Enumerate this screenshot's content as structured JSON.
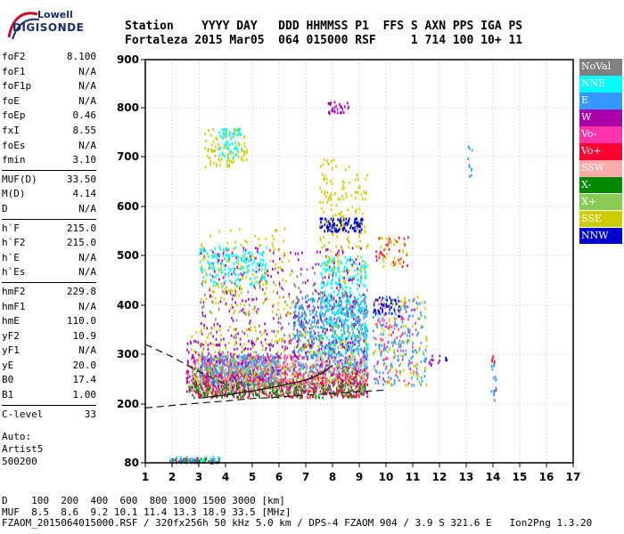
{
  "logo": {
    "top": "Lowell",
    "main": "DIGISONDE"
  },
  "header": {
    "line1": "Station    YYYY DAY   DDD HHMMSS P1  FFS S AXN PPS IGA PS",
    "line2": "Fortaleza 2015 Mar05  064 015000 RSF     1 714 100 10+ 11"
  },
  "params": [
    {
      "name": "foF2",
      "value": "8.100"
    },
    {
      "name": "foF1",
      "value": "N/A"
    },
    {
      "name": "foF1p",
      "value": "N/A"
    },
    {
      "name": "foE",
      "value": "N/A"
    },
    {
      "name": "foEp",
      "value": "0.46"
    },
    {
      "name": "fxI",
      "value": "8.55"
    },
    {
      "name": "foEs",
      "value": "N/A"
    },
    {
      "name": "fmin",
      "value": "3.10"
    },
    {
      "sep": true
    },
    {
      "name": "MUF(D)",
      "value": "33.50"
    },
    {
      "name": "M(D)",
      "value": "4.14"
    },
    {
      "name": "D",
      "value": "N/A"
    },
    {
      "sep": true
    },
    {
      "name": "h`F",
      "value": "215.0"
    },
    {
      "name": "h`F2",
      "value": "215.0"
    },
    {
      "name": "h`E",
      "value": "N/A"
    },
    {
      "name": "h`Es",
      "value": "N/A"
    },
    {
      "sep": true
    },
    {
      "name": "hmF2",
      "value": "229.8"
    },
    {
      "name": "hmF1",
      "value": "N/A"
    },
    {
      "name": "hmE",
      "value": "110.0"
    },
    {
      "name": "yF2",
      "value": "10.9"
    },
    {
      "name": "yF1",
      "value": "N/A"
    },
    {
      "name": "yE",
      "value": "20.0"
    },
    {
      "name": "B0",
      "value": "17.4"
    },
    {
      "name": "B1",
      "value": "1.00"
    },
    {
      "sep": true
    },
    {
      "name": "C-level",
      "value": "33"
    }
  ],
  "auto": {
    "line1": "Auto:",
    "line2": "Artist5",
    "line3": "500200"
  },
  "footer": {
    "line1": "D    100  200  400  600  800 1000 1500 3000 [km]",
    "line2": "MUF  8.5  8.6  9.2 10.1 11.4 13.3 18.9 33.5 [MHz]",
    "line3": "FZAOM_2015064015000.RSF / 320fx256h 50 kHz 5.0 km / DPS-4 FZAOM 904 / 3.9 S 321.6 E   Ion2Png 1.3.20"
  },
  "legend": [
    {
      "label": "NoVal",
      "color": "#808080"
    },
    {
      "label": "NNE",
      "color": "#00ffff"
    },
    {
      "label": "E",
      "color": "#3399ff"
    },
    {
      "label": "W",
      "color": "#aa00aa"
    },
    {
      "label": "Vo-",
      "color": "#ff33aa"
    },
    {
      "label": "Vo+",
      "color": "#ff0033"
    },
    {
      "label": "SSW",
      "color": "#ffaaaa"
    },
    {
      "label": "X-",
      "color": "#008800"
    },
    {
      "label": "X+",
      "color": "#88cc55"
    },
    {
      "label": "SSE",
      "color": "#cccc00"
    },
    {
      "label": "NNW",
      "color": "#0000cc"
    }
  ],
  "chart_data": {
    "type": "scatter",
    "title": "",
    "xlabel": "",
    "ylabel": "",
    "xlim": [
      1,
      17
    ],
    "ylim": [
      80,
      900
    ],
    "x_ticks": [
      1,
      2,
      3,
      4,
      5,
      6,
      7,
      8,
      9,
      10,
      11,
      12,
      13,
      14,
      15,
      16,
      17
    ],
    "y_ticks": [
      80,
      200,
      300,
      400,
      500,
      600,
      700,
      800,
      900
    ],
    "grid": "dotted",
    "legend_placement": "right",
    "clusters": [
      {
        "series": "E",
        "x": [
          3.0,
          6.0
        ],
        "y": [
          240,
          300
        ],
        "count": 700
      },
      {
        "series": "E",
        "x": [
          6.5,
          9.3
        ],
        "y": [
          260,
          420
        ],
        "count": 600
      },
      {
        "series": "NNE",
        "x": [
          7.5,
          9.3
        ],
        "y": [
          280,
          500
        ],
        "count": 350
      },
      {
        "series": "Vo+",
        "x": [
          2.8,
          9.3
        ],
        "y": [
          215,
          265
        ],
        "count": 500
      },
      {
        "series": "Vo-",
        "x": [
          2.5,
          9.3
        ],
        "y": [
          230,
          300
        ],
        "count": 350
      },
      {
        "series": "W",
        "x": [
          2.5,
          9.3
        ],
        "y": [
          220,
          330
        ],
        "count": 350
      },
      {
        "series": "W",
        "x": [
          3.0,
          9.2
        ],
        "y": [
          320,
          520
        ],
        "count": 260
      },
      {
        "series": "SSE",
        "x": [
          2.7,
          9.3
        ],
        "y": [
          240,
          360
        ],
        "count": 260
      },
      {
        "series": "SSE",
        "x": [
          3.0,
          6.5
        ],
        "y": [
          380,
          560
        ],
        "count": 160
      },
      {
        "series": "SSE",
        "x": [
          3.2,
          4.8
        ],
        "y": [
          680,
          760
        ],
        "count": 90
      },
      {
        "series": "NNE",
        "x": [
          3.0,
          5.5
        ],
        "y": [
          440,
          520
        ],
        "count": 160
      },
      {
        "series": "NNE",
        "x": [
          3.7,
          4.6
        ],
        "y": [
          700,
          760
        ],
        "count": 60
      },
      {
        "series": "X-",
        "x": [
          2.6,
          9.2
        ],
        "y": [
          215,
          245
        ],
        "count": 200
      },
      {
        "series": "X+",
        "x": [
          2.6,
          9.2
        ],
        "y": [
          225,
          280
        ],
        "count": 220
      },
      {
        "series": "SSW",
        "x": [
          3.0,
          9.3
        ],
        "y": [
          230,
          300
        ],
        "count": 180
      },
      {
        "series": "NoVal",
        "x": [
          3.0,
          9.3
        ],
        "y": [
          220,
          480
        ],
        "count": 220
      },
      {
        "series": "NNW",
        "x": [
          7.5,
          9.1
        ],
        "y": [
          550,
          580
        ],
        "count": 120
      },
      {
        "series": "W",
        "x": [
          7.8,
          8.6
        ],
        "y": [
          790,
          815
        ],
        "count": 30
      },
      {
        "series": "SSE",
        "x": [
          7.5,
          9.3
        ],
        "y": [
          440,
          700
        ],
        "count": 160
      },
      {
        "series": "E",
        "x": [
          9.5,
          11.5
        ],
        "y": [
          240,
          420
        ],
        "count": 180
      },
      {
        "series": "SSE",
        "x": [
          9.5,
          11.5
        ],
        "y": [
          240,
          420
        ],
        "count": 90
      },
      {
        "series": "Vo-",
        "x": [
          9.5,
          11.2
        ],
        "y": [
          240,
          420
        ],
        "count": 80
      },
      {
        "series": "NNW",
        "x": [
          9.5,
          10.5
        ],
        "y": [
          380,
          420
        ],
        "count": 40
      },
      {
        "series": "Vo+",
        "x": [
          9.6,
          10.8
        ],
        "y": [
          480,
          540
        ],
        "count": 30
      },
      {
        "series": "SSE",
        "x": [
          9.6,
          10.8
        ],
        "y": [
          480,
          540
        ],
        "count": 30
      },
      {
        "series": "W",
        "x": [
          11.5,
          12.0
        ],
        "y": [
          280,
          300
        ],
        "count": 10
      },
      {
        "series": "NNW",
        "x": [
          12.2,
          12.4
        ],
        "y": [
          285,
          295
        ],
        "count": 4
      },
      {
        "series": "E",
        "x": [
          13.0,
          13.2
        ],
        "y": [
          660,
          725
        ],
        "count": 10
      },
      {
        "series": "E",
        "x": [
          13.9,
          14.1
        ],
        "y": [
          205,
          310
        ],
        "count": 16
      },
      {
        "series": "Vo+",
        "x": [
          13.9,
          14.1
        ],
        "y": [
          230,
          300
        ],
        "count": 6
      },
      {
        "series": "Vo+",
        "x": [
          1.9,
          3.8
        ],
        "y": [
          82,
          92
        ],
        "count": 40
      },
      {
        "series": "X-",
        "x": [
          1.9,
          3.8
        ],
        "y": [
          82,
          92
        ],
        "count": 35
      },
      {
        "series": "E",
        "x": [
          1.9,
          3.8
        ],
        "y": [
          82,
          92
        ],
        "count": 25
      },
      {
        "series": "NNE",
        "x": [
          1.9,
          3.8
        ],
        "y": [
          84,
          96
        ],
        "count": 15
      }
    ],
    "traces": [
      {
        "name": "dashed-left",
        "style": "dashed",
        "x": [
          1,
          2,
          3,
          4
        ],
        "y": [
          320,
          295,
          265,
          240
        ]
      },
      {
        "name": "dashed-bottom",
        "style": "dashed",
        "x": [
          1,
          2,
          3,
          4,
          5,
          6,
          7,
          8,
          9,
          10
        ],
        "y": [
          192,
          197,
          202,
          206,
          211,
          214,
          218,
          221,
          225,
          228
        ]
      },
      {
        "name": "solid-trace",
        "style": "solid",
        "x": [
          3.0,
          4.0,
          5.0,
          6.0,
          7.0,
          7.6,
          8.0
        ],
        "y": [
          212,
          218,
          226,
          236,
          248,
          262,
          278
        ]
      }
    ]
  }
}
